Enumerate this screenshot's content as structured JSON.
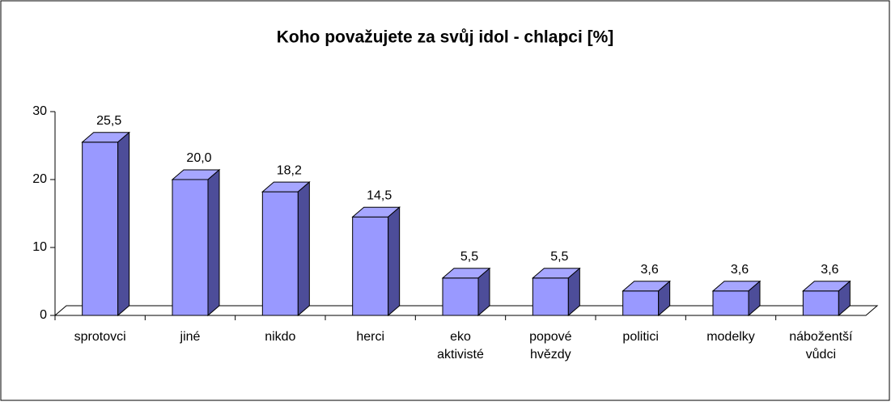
{
  "chart_data": {
    "type": "bar3d",
    "title": "Koho považujete za svůj idol - chlapci [%]",
    "categories": [
      "sprotovci",
      "jiné",
      "nikdo",
      "herci",
      "eko aktivisté",
      "popové hvězdy",
      "politici",
      "modelky",
      "nábožentší vůdci"
    ],
    "values": [
      25.5,
      20.0,
      18.2,
      14.5,
      5.5,
      5.5,
      3.6,
      3.6,
      3.6
    ],
    "value_labels": [
      "25,5",
      "20,0",
      "18,2",
      "14,5",
      "5,5",
      "5,5",
      "3,6",
      "3,6",
      "3,6"
    ],
    "color": "#9999ff",
    "ylim": [
      0,
      30
    ],
    "yticks": [
      0,
      10,
      20,
      30
    ],
    "grid": false
  }
}
